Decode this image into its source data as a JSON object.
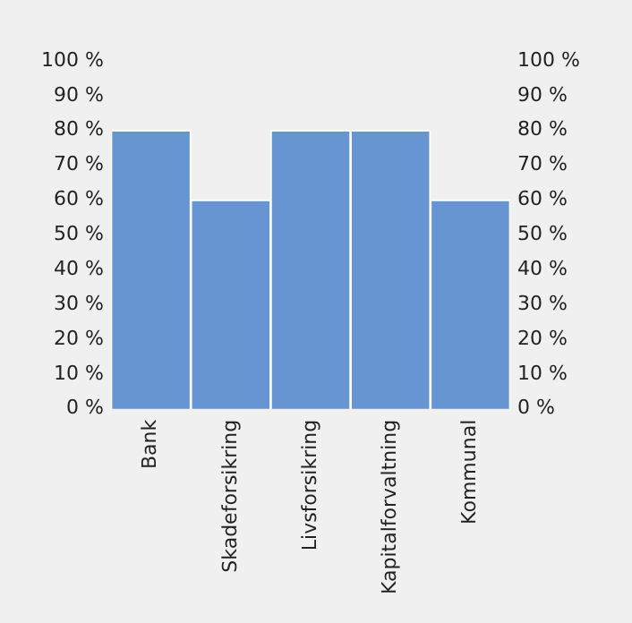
{
  "chart_data": {
    "type": "bar",
    "categories": [
      "Bank",
      "Skadeforsikring",
      "Livsforsikring",
      "Kapitalforvaltning",
      "Kommunal"
    ],
    "values": [
      80,
      60,
      80,
      80,
      60
    ],
    "color": "#6795d1",
    "ylim": [
      0,
      100
    ],
    "yticks": [
      {
        "value": 0,
        "label": "0 %"
      },
      {
        "value": 10,
        "label": "10 %"
      },
      {
        "value": 20,
        "label": "20 %"
      },
      {
        "value": 30,
        "label": "30 %"
      },
      {
        "value": 40,
        "label": "40 %"
      },
      {
        "value": 50,
        "label": "50 %"
      },
      {
        "value": 60,
        "label": "60 %"
      },
      {
        "value": 70,
        "label": "70 %"
      },
      {
        "value": 80,
        "label": "80 %"
      },
      {
        "value": 90,
        "label": "90 %"
      },
      {
        "value": 100,
        "label": "100 %"
      }
    ],
    "y2lim": [
      0,
      100
    ],
    "y2ticks": [
      {
        "value": 0,
        "label": "0 %"
      },
      {
        "value": 10,
        "label": "10 %"
      },
      {
        "value": 20,
        "label": "20 %"
      },
      {
        "value": 30,
        "label": "30 %"
      },
      {
        "value": 40,
        "label": "40 %"
      },
      {
        "value": 50,
        "label": "50 %"
      },
      {
        "value": 60,
        "label": "60 %"
      },
      {
        "value": 70,
        "label": "70 %"
      },
      {
        "value": 80,
        "label": "80 %"
      },
      {
        "value": 90,
        "label": "90 %"
      },
      {
        "value": 100,
        "label": "100 %"
      }
    ],
    "grid": false,
    "legend": false
  }
}
